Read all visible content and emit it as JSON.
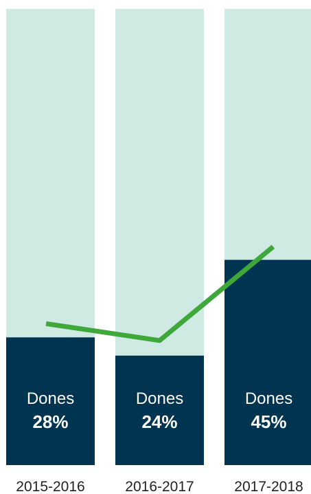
{
  "chart_data": {
    "type": "bar",
    "categories": [
      "2015-2016",
      "2016-2017",
      "2017-2018"
    ],
    "series": [
      {
        "label": "Dones",
        "values": [
          28,
          24,
          45
        ],
        "value_labels": [
          "28%",
          "24%",
          "45%"
        ]
      }
    ],
    "ylim": [
      0,
      100
    ],
    "stacked_background": true,
    "trend_line": true,
    "grid": false,
    "legend": "none",
    "colors": {
      "bar_fill": "#003451",
      "bar_background": "#cfe9e3",
      "trend_line": "#3ea83b",
      "inner_text": "#ffffff",
      "category_text": "#222222"
    }
  }
}
